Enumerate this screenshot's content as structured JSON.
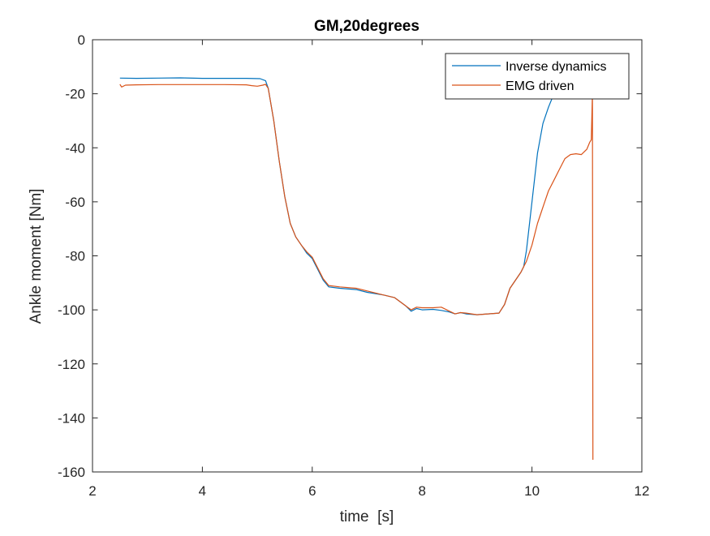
{
  "chart_data": {
    "type": "line",
    "title": "GM,20degrees",
    "xlabel": "time  [s]",
    "ylabel": "Ankle moment [Nm]",
    "xlim": [
      2,
      12
    ],
    "ylim": [
      -160,
      0
    ],
    "xticks": [
      2,
      4,
      6,
      8,
      10,
      12
    ],
    "yticks": [
      0,
      -20,
      -40,
      -60,
      -80,
      -100,
      -120,
      -140,
      -160
    ],
    "grid": false,
    "legend_position": "top-right",
    "series": [
      {
        "name": "Inverse dynamics",
        "color": "#0072BD",
        "x": [
          2.5,
          2.8,
          3.2,
          3.6,
          4.0,
          4.4,
          4.8,
          5.05,
          5.15,
          5.2,
          5.3,
          5.4,
          5.5,
          5.6,
          5.7,
          5.8,
          5.9,
          6.0,
          6.1,
          6.2,
          6.3,
          6.5,
          6.8,
          7.0,
          7.3,
          7.5,
          7.7,
          7.8,
          7.9,
          8.0,
          8.2,
          8.35,
          8.5,
          8.6,
          8.7,
          8.8,
          9.0,
          9.2,
          9.4,
          9.5,
          9.6,
          9.7,
          9.8,
          9.85,
          9.9,
          10.0,
          10.1,
          10.2,
          10.3,
          10.4
        ],
        "y": [
          -14.2,
          -14.3,
          -14.2,
          -14.1,
          -14.3,
          -14.3,
          -14.3,
          -14.4,
          -15.2,
          -18,
          -30,
          -45,
          -58,
          -68,
          -73,
          -76,
          -79,
          -81,
          -85,
          -89,
          -91.5,
          -92,
          -92.5,
          -93.5,
          -94.5,
          -95.5,
          -98.5,
          -100.5,
          -99.5,
          -100,
          -99.8,
          -100.2,
          -100.8,
          -101.5,
          -101,
          -101.5,
          -101.8,
          -101.5,
          -101.2,
          -98,
          -92,
          -89,
          -86,
          -84,
          -78,
          -60,
          -42,
          -31,
          -25,
          -20
        ]
      },
      {
        "name": "EMG driven",
        "color": "#D95319",
        "x": [
          2.5,
          2.53,
          2.6,
          2.8,
          3.2,
          3.6,
          4.0,
          4.4,
          4.8,
          4.9,
          5.0,
          5.1,
          5.15,
          5.2,
          5.3,
          5.4,
          5.5,
          5.6,
          5.7,
          5.8,
          5.9,
          6.0,
          6.1,
          6.2,
          6.3,
          6.5,
          6.8,
          7.0,
          7.3,
          7.5,
          7.7,
          7.8,
          7.9,
          8.0,
          8.2,
          8.35,
          8.5,
          8.6,
          8.7,
          8.8,
          9.0,
          9.2,
          9.4,
          9.5,
          9.6,
          9.7,
          9.8,
          9.85,
          9.9,
          10.0,
          10.1,
          10.2,
          10.3,
          10.4,
          10.5,
          10.6,
          10.7,
          10.8,
          10.9,
          11.0,
          11.05,
          11.08,
          11.1,
          11.11
        ],
        "y": [
          -16.5,
          -17.5,
          -16.8,
          -16.7,
          -16.6,
          -16.6,
          -16.6,
          -16.6,
          -16.7,
          -17.0,
          -17.2,
          -16.8,
          -16.5,
          -18,
          -30,
          -45,
          -58,
          -68,
          -73,
          -76,
          -78.5,
          -80.5,
          -84.5,
          -88.5,
          -91,
          -91.5,
          -92,
          -93,
          -94.5,
          -95.5,
          -98.5,
          -100,
          -99,
          -99.2,
          -99.2,
          -99,
          -100.5,
          -101.5,
          -101,
          -101.2,
          -101.8,
          -101.5,
          -101.2,
          -98,
          -92,
          -89,
          -86,
          -84,
          -82,
          -76,
          -68,
          -62,
          -56,
          -52,
          -48,
          -44,
          -42.5,
          -42.2,
          -42.5,
          -40.5,
          -38,
          -37,
          -20,
          -155.5
        ]
      }
    ]
  }
}
